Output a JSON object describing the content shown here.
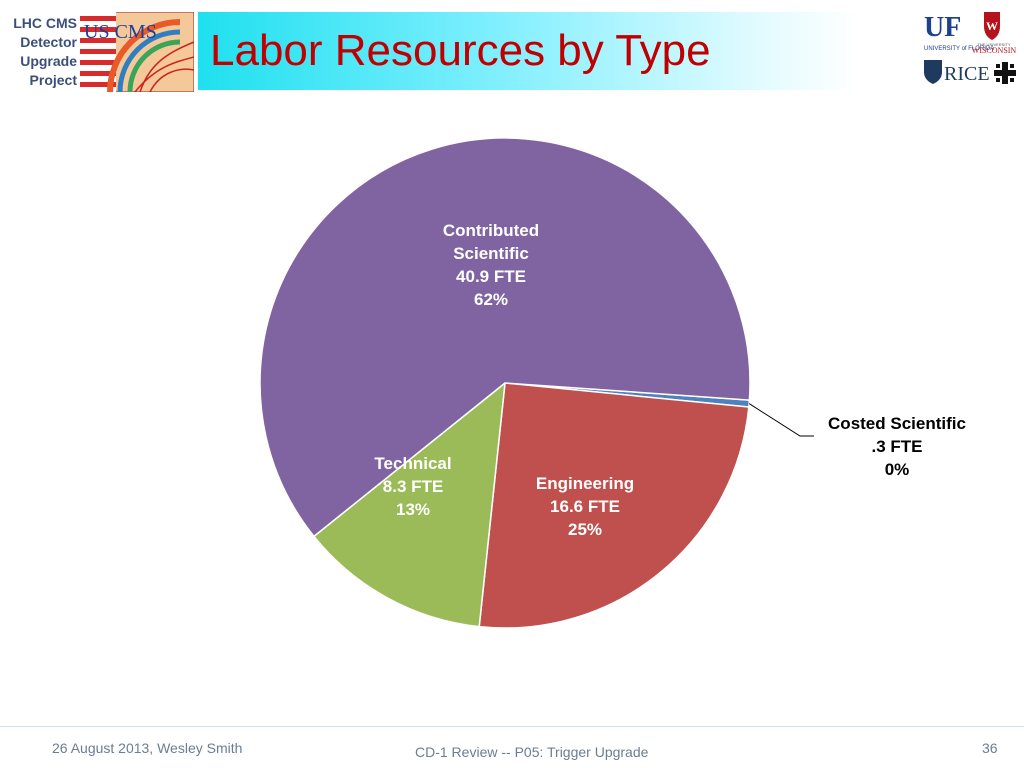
{
  "header": {
    "side_label": [
      "LHC CMS",
      "Detector",
      "Upgrade",
      "Project"
    ],
    "title": "Labor Resources by Type",
    "logo_text": "US CMS",
    "institutions": {
      "uf": "UF",
      "uf_small": "UNIVERSITY of FLORIDA",
      "wisconsin": "WISCONSIN",
      "wisconsin_small": "THE UNIVERSITY",
      "rice": "RICE"
    }
  },
  "chart_data": {
    "type": "pie",
    "title": "",
    "start_angle_deg": 4,
    "direction": "clockwise",
    "slices": [
      {
        "label": [
          "Costed Scientific",
          ".3 FTE",
          "0%"
        ],
        "value": 0.3,
        "color": "#4f81bd"
      },
      {
        "label": [
          "Engineering",
          "16.6 FTE",
          "25%"
        ],
        "value": 16.6,
        "color": "#c0504d"
      },
      {
        "label": [
          "Technical",
          "8.3 FTE",
          "13%"
        ],
        "value": 8.3,
        "color": "#9bbb59"
      },
      {
        "label": [
          "Contributed",
          "Scientific",
          "40.9 FTE",
          "62%"
        ],
        "value": 40.9,
        "color": "#8064a2"
      }
    ]
  },
  "footer": {
    "date_author": "26 August 2013, Wesley Smith",
    "review": "CD-1  Review -- P05: Trigger Upgrade",
    "page_number": "36"
  },
  "colors": {
    "title": "#c00000",
    "side_label": "#3b4f7a",
    "footer_text": "#6b7d93"
  }
}
